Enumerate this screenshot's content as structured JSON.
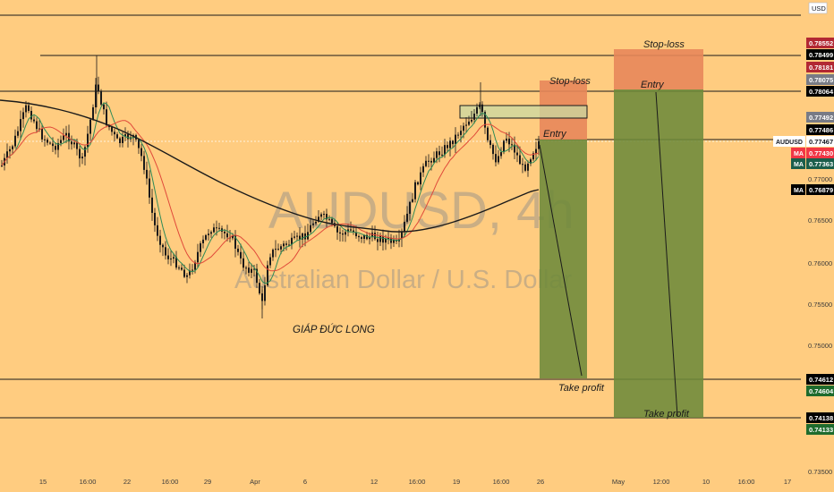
{
  "symbol": "AUDUSD",
  "watermark": {
    "ticker": "AUDUSD, 4h",
    "description": "Australian Dollar / U.S. Dollar"
  },
  "author": "GIÁP ĐỨC LONG",
  "currency_button": "USD",
  "trade_labels": {
    "stop_loss": "Stop-loss",
    "entry": "Entry",
    "take_profit": "Take profit"
  },
  "price_ticks": [
    "0.77000",
    "0.76500",
    "0.76000",
    "0.75500",
    "0.75000",
    "0.73500"
  ],
  "time_ticks": [
    "15",
    "16:00",
    "22",
    "16:00",
    "29",
    "Apr",
    "6",
    "12",
    "16:00",
    "19",
    "16:00",
    "26",
    "May",
    "12:00",
    "10",
    "16:00",
    "17"
  ],
  "price_badges": [
    {
      "text": "0.78552",
      "color": "#b22833",
      "text_color": "#ffffff"
    },
    {
      "text": "0.78499",
      "color": "#000000",
      "text_color": "#ffffff"
    },
    {
      "text": "0.78181",
      "color": "#b22833",
      "text_color": "#ffffff"
    },
    {
      "text": "0.78075",
      "color": "#787b86",
      "text_color": "#ffffff"
    },
    {
      "text": "0.78064",
      "color": "#000000",
      "text_color": "#ffffff"
    },
    {
      "text": "0.77492",
      "color": "#787b86",
      "text_color": "#ffffff"
    },
    {
      "text": "0.77486",
      "color": "#000000",
      "text_color": "#ffffff"
    },
    {
      "text": "0.77467",
      "color": "#ffffff",
      "text_color": "#131722",
      "label": "AUDUSD"
    },
    {
      "text": "0.77430",
      "color": "#f23645",
      "text_color": "#ffffff",
      "label": "MA"
    },
    {
      "text": "0.77363",
      "color": "#1b5e4b",
      "text_color": "#ffffff",
      "label": "MA"
    },
    {
      "text": "0.76879",
      "color": "#000000",
      "text_color": "#ffffff",
      "label": "MA"
    },
    {
      "text": "0.74612",
      "color": "#000000",
      "text_color": "#ffffff"
    },
    {
      "text": "0.74604",
      "color": "#1e6b2d",
      "text_color": "#ffffff"
    },
    {
      "text": "0.74138",
      "color": "#000000",
      "text_color": "#ffffff"
    },
    {
      "text": "0.74133",
      "color": "#1e6b2d",
      "text_color": "#ffffff"
    }
  ],
  "colors": {
    "background": "#ffcc80",
    "stop_zone": "#e8875a",
    "target_zone": "#6d8a3a",
    "candle": "#1a1a1a",
    "ma_fast": "#2e8b57",
    "ma_mid": "#e04a3a",
    "ma_slow": "#1a1a1a"
  }
}
